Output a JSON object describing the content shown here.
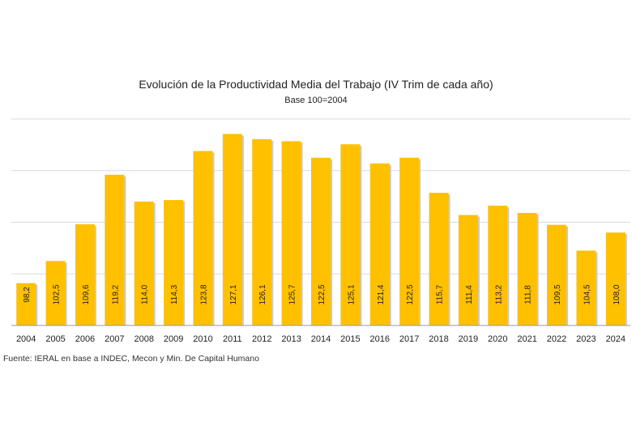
{
  "chart_data": {
    "type": "bar",
    "title": "Evolución de la Productividad Media del Trabajo (IV Trim de cada año)",
    "subtitle": "Base 100=2004",
    "xlabel": "",
    "ylabel": "",
    "categories": [
      "2004",
      "2005",
      "2006",
      "2007",
      "2008",
      "2009",
      "2010",
      "2011",
      "2012",
      "2013",
      "2014",
      "2015",
      "2016",
      "2017",
      "2018",
      "2019",
      "2020",
      "2021",
      "2022",
      "2023",
      "2024"
    ],
    "values": [
      98.2,
      102.5,
      109.6,
      119.2,
      114.0,
      114.3,
      123.8,
      127.1,
      126.1,
      125.7,
      122.5,
      125.1,
      121.4,
      122.5,
      115.7,
      111.4,
      113.2,
      111.8,
      109.5,
      104.5,
      108.0
    ],
    "value_labels": [
      "98,2",
      "102,5",
      "109,6",
      "119,2",
      "114,0",
      "114,3",
      "123,8",
      "127,1",
      "126,1",
      "125,7",
      "122,5",
      "125,1",
      "121,4",
      "122,5",
      "115,7",
      "111,4",
      "113,2",
      "111,8",
      "109,5",
      "104,5",
      "108,0"
    ],
    "ylim": [
      90,
      130
    ],
    "gridlines": [
      90,
      100,
      110,
      120,
      130
    ],
    "grid": true,
    "legend": "none",
    "bar_color": "#FFC000"
  },
  "source": "Fuente: IERAL en base a INDEC, Mecon y Min. De Capital Humano"
}
